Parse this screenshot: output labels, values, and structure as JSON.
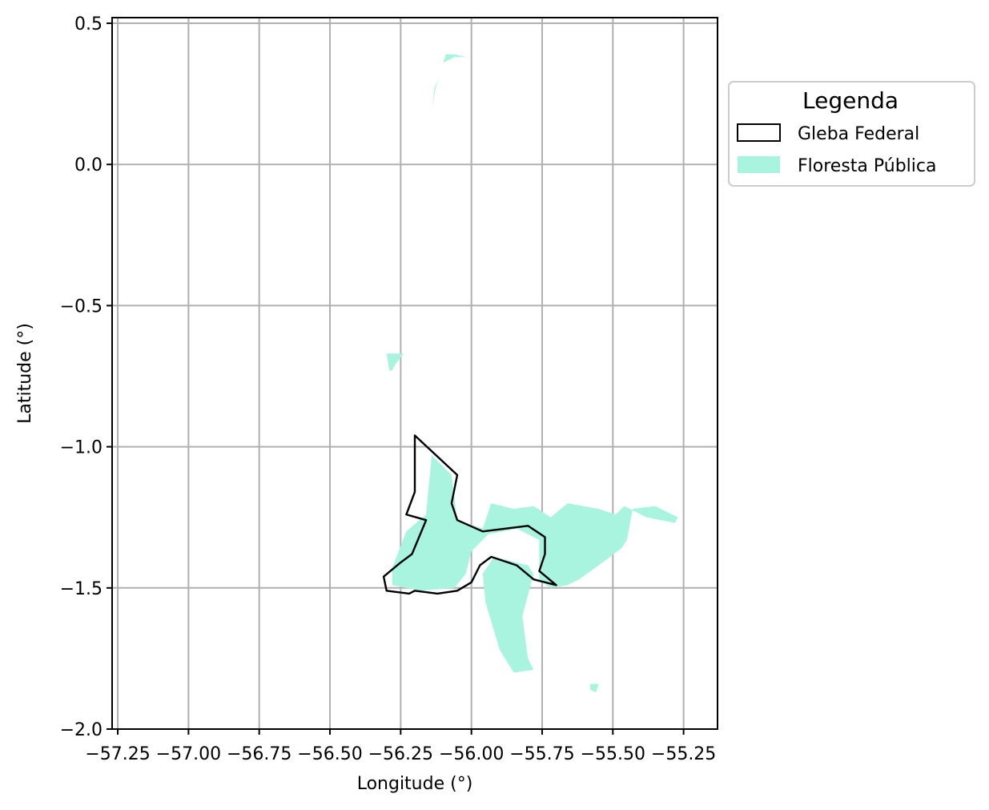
{
  "chart_data": {
    "type": "map",
    "xlabel": "Longitude (°)",
    "ylabel": "Latitude (°)",
    "xlim": [
      -57.27,
      -55.13
    ],
    "ylim": [
      -2.0,
      0.52
    ],
    "xticks": [
      -57.25,
      -57.0,
      -56.75,
      -56.5,
      -56.25,
      -56.0,
      -55.75,
      -55.5,
      -55.25
    ],
    "xtick_labels": [
      "−57.25",
      "−57.00",
      "−56.75",
      "−56.50",
      "−56.25",
      "−56.00",
      "−55.75",
      "−55.50",
      "−55.25"
    ],
    "yticks": [
      0.5,
      0.0,
      -0.5,
      -1.0,
      -1.5,
      -2.0
    ],
    "ytick_labels": [
      "0.5",
      "0.0",
      "−0.5",
      "−1.0",
      "−1.5",
      "−2.0"
    ],
    "grid": true,
    "legend": {
      "title": "Legenda",
      "placement": "outside-right-top",
      "entries": [
        {
          "label": "Gleba Federal",
          "style": "outline",
          "color": "#000000"
        },
        {
          "label": "Floresta Pública",
          "style": "fill",
          "color": "#a8f4de"
        }
      ]
    },
    "series": [
      {
        "name": "Gleba Federal",
        "kind": "outline",
        "color": "#000000",
        "coordinates": [
          [
            -56.2,
            -0.96
          ],
          [
            -56.05,
            -1.1
          ],
          [
            -56.07,
            -1.2
          ],
          [
            -56.05,
            -1.26
          ],
          [
            -55.96,
            -1.3
          ],
          [
            -55.88,
            -1.29
          ],
          [
            -55.8,
            -1.28
          ],
          [
            -55.74,
            -1.32
          ],
          [
            -55.74,
            -1.38
          ],
          [
            -55.76,
            -1.44
          ],
          [
            -55.7,
            -1.49
          ],
          [
            -55.78,
            -1.47
          ],
          [
            -55.84,
            -1.42
          ],
          [
            -55.93,
            -1.39
          ],
          [
            -55.97,
            -1.42
          ],
          [
            -56.0,
            -1.48
          ],
          [
            -56.05,
            -1.51
          ],
          [
            -56.12,
            -1.52
          ],
          [
            -56.2,
            -1.51
          ],
          [
            -56.22,
            -1.52
          ],
          [
            -56.3,
            -1.51
          ],
          [
            -56.31,
            -1.46
          ],
          [
            -56.25,
            -1.41
          ],
          [
            -56.21,
            -1.38
          ],
          [
            -56.16,
            -1.26
          ],
          [
            -56.23,
            -1.24
          ],
          [
            -56.2,
            -1.16
          ],
          [
            -56.2,
            -1.1
          ],
          [
            -56.2,
            -0.96
          ]
        ]
      },
      {
        "name": "Floresta Pública",
        "kind": "fill",
        "color": "#a8f4de",
        "polygons": [
          [
            [
              -56.14,
              -1.03
            ],
            [
              -56.07,
              -1.1
            ],
            [
              -56.05,
              -1.26
            ],
            [
              -55.96,
              -1.29
            ],
            [
              -55.93,
              -1.2
            ],
            [
              -55.85,
              -1.22
            ],
            [
              -55.78,
              -1.21
            ],
            [
              -55.72,
              -1.25
            ],
            [
              -55.66,
              -1.2
            ],
            [
              -55.55,
              -1.22
            ],
            [
              -55.49,
              -1.24
            ],
            [
              -55.46,
              -1.21
            ],
            [
              -55.38,
              -1.25
            ],
            [
              -55.28,
              -1.27
            ],
            [
              -55.27,
              -1.25
            ],
            [
              -55.35,
              -1.21
            ],
            [
              -55.43,
              -1.22
            ],
            [
              -55.45,
              -1.33
            ],
            [
              -55.47,
              -1.36
            ],
            [
              -55.55,
              -1.42
            ],
            [
              -55.62,
              -1.47
            ],
            [
              -55.66,
              -1.49
            ],
            [
              -55.72,
              -1.5
            ],
            [
              -55.76,
              -1.47
            ],
            [
              -55.76,
              -1.33
            ],
            [
              -55.84,
              -1.29
            ],
            [
              -55.94,
              -1.31
            ],
            [
              -56.0,
              -1.37
            ],
            [
              -56.02,
              -1.45
            ],
            [
              -56.06,
              -1.5
            ],
            [
              -56.18,
              -1.51
            ],
            [
              -56.28,
              -1.49
            ],
            [
              -56.28,
              -1.43
            ],
            [
              -56.23,
              -1.3
            ],
            [
              -56.16,
              -1.24
            ],
            [
              -56.15,
              -1.13
            ]
          ],
          [
            [
              -55.92,
              -1.39
            ],
            [
              -55.8,
              -1.42
            ],
            [
              -55.78,
              -1.45
            ],
            [
              -55.82,
              -1.6
            ],
            [
              -55.8,
              -1.75
            ],
            [
              -55.78,
              -1.79
            ],
            [
              -55.85,
              -1.8
            ],
            [
              -55.9,
              -1.72
            ],
            [
              -55.95,
              -1.55
            ],
            [
              -55.96,
              -1.45
            ]
          ],
          [
            [
              -56.3,
              -0.67
            ],
            [
              -56.24,
              -0.67
            ],
            [
              -56.27,
              -0.71
            ],
            [
              -56.28,
              -0.73
            ],
            [
              -56.29,
              -0.73
            ]
          ],
          [
            [
              -56.14,
              0.2
            ],
            [
              -56.13,
              0.27
            ],
            [
              -56.09,
              0.39
            ],
            [
              -56.06,
              0.39
            ],
            [
              -56.02,
              0.38
            ],
            [
              -56.06,
              0.38
            ],
            [
              -56.1,
              0.36
            ],
            [
              -56.12,
              0.3
            ],
            [
              -56.13,
              0.25
            ]
          ],
          [
            [
              -55.58,
              -1.84
            ],
            [
              -55.55,
              -1.84
            ],
            [
              -55.56,
              -1.87
            ],
            [
              -55.58,
              -1.86
            ]
          ]
        ]
      }
    ]
  }
}
